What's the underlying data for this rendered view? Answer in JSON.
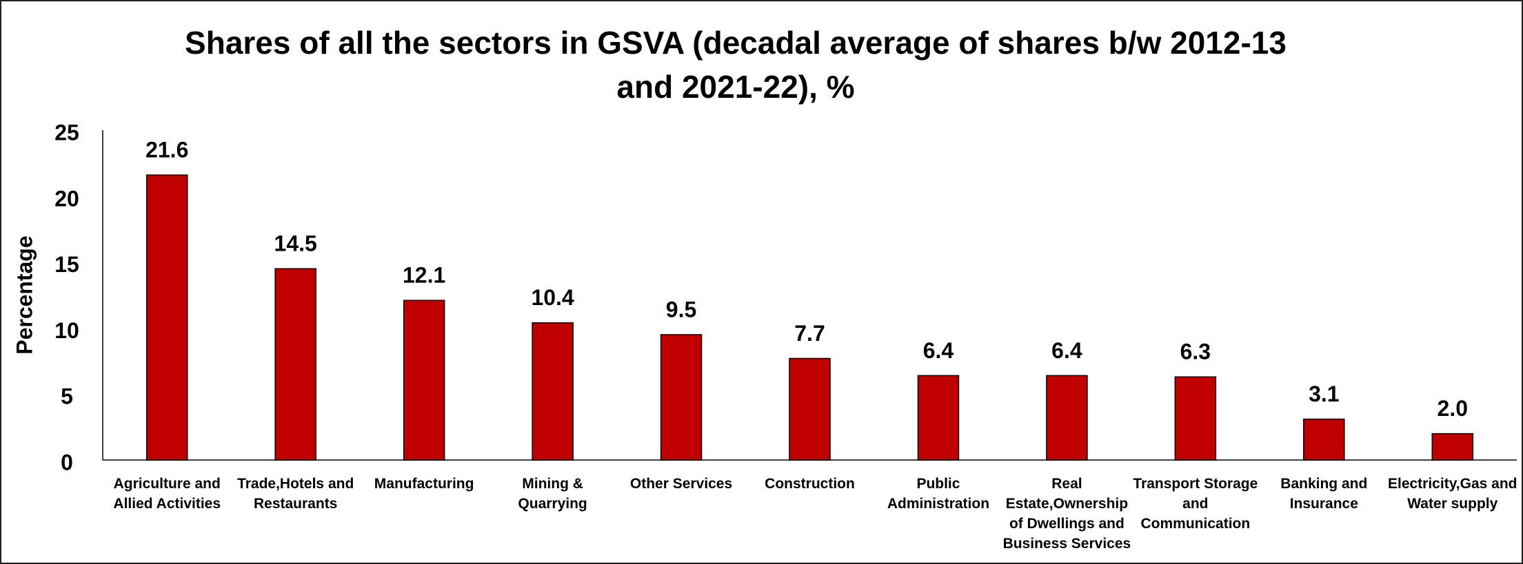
{
  "chart_data": {
    "type": "bar",
    "title": "Shares of all the sectors in GSVA (decadal average of shares b/w 2012-13 and 2021-22), %",
    "y_label": "Percentage",
    "categories": [
      "Agriculture and Allied Activities",
      "Trade,Hotels and Restaurants",
      "Manufacturing",
      "Mining & Quarrying",
      "Other Services",
      "Construction",
      "Public Administration",
      "Real Estate,Ownership of Dwellings and Business Services",
      "Transport Storage and Communication",
      "Banking and Insurance",
      "Electricity,Gas and Water supply"
    ],
    "values": [
      21.6,
      14.5,
      12.1,
      10.4,
      9.5,
      7.7,
      6.4,
      6.4,
      6.3,
      3.1,
      2.0
    ],
    "value_labels": [
      "21.6",
      "14.5",
      "12.1",
      "10.4",
      "9.5",
      "7.7",
      "6.4",
      "6.4",
      "6.3",
      "3.1",
      "2.0"
    ],
    "color": "#c00000",
    "ylim": [
      0,
      25
    ],
    "yticks": [
      0,
      5,
      10,
      15,
      20,
      25
    ],
    "grid": false
  }
}
